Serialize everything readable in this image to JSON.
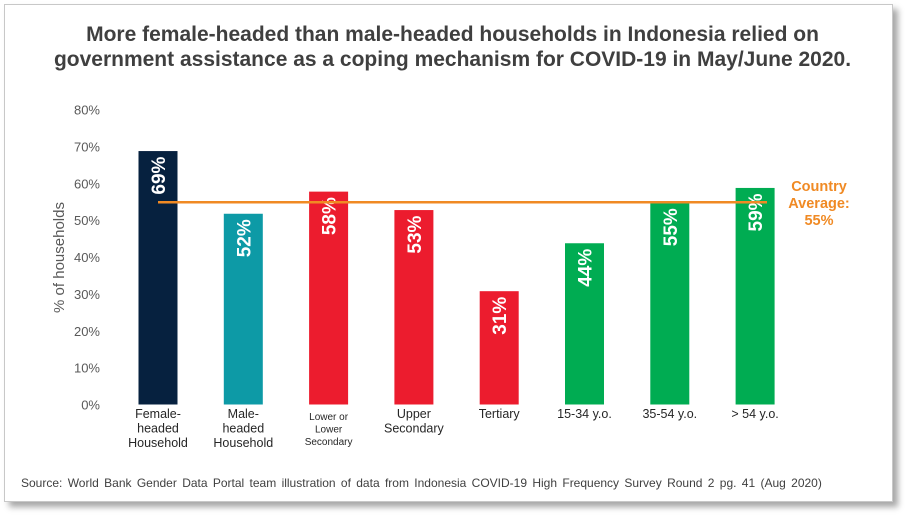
{
  "title_lines": [
    "More female-headed than male-headed households in Indonesia relied on",
    "government assistance as a coping mechanism for COVID-19 in May/June 2020."
  ],
  "source": "Source: World Bank Gender Data Portal team illustration of data from Indonesia COVID-19 High Frequency Survey Round 2 pg. 41 (Aug 2020)",
  "chart_data": {
    "type": "bar",
    "title": "More female-headed than male-headed households in Indonesia relied on government assistance as a coping mechanism for COVID-19 in May/June 2020.",
    "ylabel": "% of households",
    "xlabel": "",
    "ylim": [
      0,
      80
    ],
    "yticks": [
      "0%",
      "10%",
      "20%",
      "30%",
      "40%",
      "50%",
      "60%",
      "70%",
      "80%"
    ],
    "ytick_values": [
      0,
      10,
      20,
      30,
      40,
      50,
      60,
      70,
      80
    ],
    "categories": [
      [
        "Female-",
        "headed",
        "Household"
      ],
      [
        "Male-",
        "headed",
        "Household"
      ],
      [
        "Lower or",
        "Lower",
        "Secondary"
      ],
      [
        "Upper",
        "Secondary"
      ],
      [
        "Tertiary"
      ],
      [
        "15-34 y.o."
      ],
      [
        "35-54 y.o."
      ],
      [
        "> 54 y.o."
      ]
    ],
    "values": [
      69,
      52,
      58,
      53,
      31,
      44,
      55,
      59
    ],
    "data_labels": [
      "69%",
      "52%",
      "58%",
      "53%",
      "31%",
      "44%",
      "55%",
      "59%"
    ],
    "colors": [
      "#06213f",
      "#0d9aa6",
      "#ec1c2e",
      "#ec1c2e",
      "#ec1c2e",
      "#00ac52",
      "#00ac52",
      "#00ac52"
    ],
    "reference_line": {
      "value": 55,
      "label_lines": [
        "Country",
        "Average:",
        "55%"
      ],
      "color": "#f08a24"
    },
    "grid": false,
    "legend": "none"
  }
}
